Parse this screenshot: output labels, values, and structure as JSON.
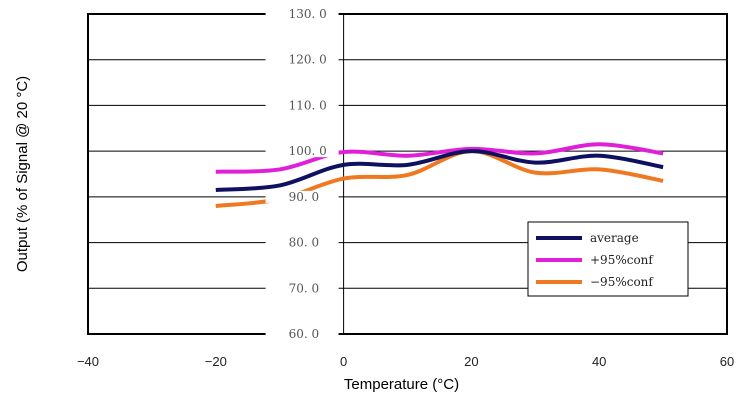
{
  "chart_data": {
    "type": "line",
    "xlabel": "Temperature (°C)",
    "ylabel": "Output (% of Signal @ 20 °C)",
    "xlim": [
      -40,
      60
    ],
    "ylim": [
      60,
      130
    ],
    "x_ticks": [
      "−40",
      "−20",
      "0",
      "20",
      "40",
      "60"
    ],
    "y_ticks": [
      "60. 0",
      "70. 0",
      "80. 0",
      "90. 0",
      "100. 0",
      "110. 0",
      "120. 0",
      "130. 0"
    ],
    "grid": "horizontal",
    "legend_position": "bottom-right",
    "x": [
      -20,
      -10,
      0,
      10,
      20,
      30,
      40,
      50
    ],
    "series": [
      {
        "name": "average",
        "color": "#0d1160",
        "values": [
          91.5,
          92.5,
          97.0,
          97.0,
          100.0,
          97.5,
          99.0,
          96.5
        ]
      },
      {
        "name": "+95%conf",
        "color": "#e020d8",
        "values": [
          95.5,
          96.0,
          99.8,
          99.0,
          100.5,
          99.5,
          101.5,
          99.5
        ]
      },
      {
        "name": "−95%conf",
        "color": "#f07820",
        "values": [
          88.0,
          89.5,
          94.0,
          94.8,
          100.0,
          95.3,
          96.0,
          93.5
        ]
      }
    ]
  }
}
